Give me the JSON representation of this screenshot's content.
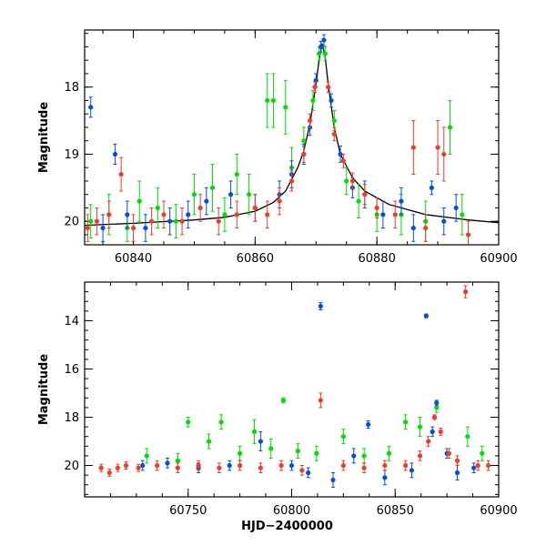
{
  "chart_data": [
    {
      "type": "scatter",
      "panel": "top",
      "xlabel": "",
      "ylabel": "Magnitude",
      "xlim": [
        60832,
        60900
      ],
      "ylim": [
        20.35,
        17.15
      ],
      "y_inverted": true,
      "x_ticks": [
        60840,
        60860,
        60880,
        60900
      ],
      "y_ticks": [
        18,
        19,
        20
      ],
      "tick_labels_x": [
        "60840",
        "60860",
        "60880",
        "60900"
      ],
      "tick_labels_y": [
        "18",
        "19",
        "20"
      ],
      "model_curve": {
        "color": "#000000",
        "x": [
          60832,
          60840,
          60850,
          60855,
          60860,
          60863,
          60865,
          60867,
          60868,
          60869,
          60870,
          60870.5,
          60871,
          60871.5,
          60872,
          60873,
          60874,
          60876,
          60878,
          60882,
          60888,
          60895,
          60900
        ],
        "y": [
          20.06,
          20.03,
          19.98,
          19.94,
          19.85,
          19.72,
          19.55,
          19.2,
          18.95,
          18.55,
          17.95,
          17.6,
          17.35,
          17.55,
          17.95,
          18.6,
          19.0,
          19.35,
          19.55,
          19.75,
          19.9,
          19.98,
          20.02
        ]
      },
      "series": [
        {
          "color": "#00dd00",
          "points": [
            {
              "x": 60833,
              "y": 20.0,
              "err": 0.25
            },
            {
              "x": 60836,
              "y": 19.9,
              "err": 0.3
            },
            {
              "x": 60839,
              "y": 20.1,
              "err": 0.2
            },
            {
              "x": 60841,
              "y": 19.7,
              "err": 0.3
            },
            {
              "x": 60844,
              "y": 19.8,
              "err": 0.3
            },
            {
              "x": 60847,
              "y": 20.0,
              "err": 0.25
            },
            {
              "x": 60850,
              "y": 19.6,
              "err": 0.3
            },
            {
              "x": 60853,
              "y": 19.5,
              "err": 0.35
            },
            {
              "x": 60855,
              "y": 19.9,
              "err": 0.25
            },
            {
              "x": 60857,
              "y": 19.3,
              "err": 0.3
            },
            {
              "x": 60859,
              "y": 19.6,
              "err": 0.3
            },
            {
              "x": 60862,
              "y": 18.2,
              "err": 0.4
            },
            {
              "x": 60863,
              "y": 18.2,
              "err": 0.4
            },
            {
              "x": 60865,
              "y": 18.3,
              "err": 0.4
            },
            {
              "x": 60866,
              "y": 19.2,
              "err": 0.3
            },
            {
              "x": 60868,
              "y": 18.8,
              "err": 0.2
            },
            {
              "x": 60869.5,
              "y": 18.2,
              "err": 0.15
            },
            {
              "x": 60870.5,
              "y": 17.5,
              "err": 0.1
            },
            {
              "x": 60871.5,
              "y": 17.5,
              "err": 0.1
            },
            {
              "x": 60873,
              "y": 18.5,
              "err": 0.15
            },
            {
              "x": 60875,
              "y": 19.4,
              "err": 0.2
            },
            {
              "x": 60877,
              "y": 19.7,
              "err": 0.25
            },
            {
              "x": 60880,
              "y": 19.9,
              "err": 0.25
            },
            {
              "x": 60884,
              "y": 19.9,
              "err": 0.3
            },
            {
              "x": 60888,
              "y": 20.0,
              "err": 0.3
            },
            {
              "x": 60892,
              "y": 18.6,
              "err": 0.4
            },
            {
              "x": 60894,
              "y": 19.9,
              "err": 0.3
            }
          ]
        },
        {
          "color": "#0050e0",
          "points": [
            {
              "x": 60833,
              "y": 18.3,
              "err": 0.15
            },
            {
              "x": 60835,
              "y": 20.1,
              "err": 0.2
            },
            {
              "x": 60837,
              "y": 19.0,
              "err": 0.15
            },
            {
              "x": 60839,
              "y": 19.9,
              "err": 0.2
            },
            {
              "x": 60842,
              "y": 20.1,
              "err": 0.2
            },
            {
              "x": 60846,
              "y": 20.0,
              "err": 0.2
            },
            {
              "x": 60849,
              "y": 19.9,
              "err": 0.2
            },
            {
              "x": 60852,
              "y": 19.7,
              "err": 0.2
            },
            {
              "x": 60856,
              "y": 19.6,
              "err": 0.2
            },
            {
              "x": 60860,
              "y": 19.8,
              "err": 0.2
            },
            {
              "x": 60864,
              "y": 19.6,
              "err": 0.2
            },
            {
              "x": 60866,
              "y": 19.3,
              "err": 0.2
            },
            {
              "x": 60868,
              "y": 19.0,
              "err": 0.15
            },
            {
              "x": 60869,
              "y": 18.6,
              "err": 0.12
            },
            {
              "x": 60870,
              "y": 17.9,
              "err": 0.1
            },
            {
              "x": 60870.8,
              "y": 17.4,
              "err": 0.08
            },
            {
              "x": 60871.3,
              "y": 17.3,
              "err": 0.08
            },
            {
              "x": 60872.5,
              "y": 18.2,
              "err": 0.1
            },
            {
              "x": 60874,
              "y": 19.0,
              "err": 0.12
            },
            {
              "x": 60876,
              "y": 19.5,
              "err": 0.15
            },
            {
              "x": 60878,
              "y": 19.6,
              "err": 0.2
            },
            {
              "x": 60881,
              "y": 19.9,
              "err": 0.2
            },
            {
              "x": 60884,
              "y": 19.7,
              "err": 0.2
            },
            {
              "x": 60886,
              "y": 20.1,
              "err": 0.2
            },
            {
              "x": 60889,
              "y": 19.5,
              "err": 0.1
            },
            {
              "x": 60891,
              "y": 20.0,
              "err": 0.2
            },
            {
              "x": 60893,
              "y": 19.8,
              "err": 0.2
            }
          ]
        },
        {
          "color": "#f03c28",
          "points": [
            {
              "x": 60832.5,
              "y": 20.1,
              "err": 0.2
            },
            {
              "x": 60834,
              "y": 20.0,
              "err": 0.2
            },
            {
              "x": 60836,
              "y": 19.9,
              "err": 0.2
            },
            {
              "x": 60838,
              "y": 19.3,
              "err": 0.25
            },
            {
              "x": 60840,
              "y": 20.1,
              "err": 0.2
            },
            {
              "x": 60843,
              "y": 20.0,
              "err": 0.2
            },
            {
              "x": 60845,
              "y": 19.9,
              "err": 0.2
            },
            {
              "x": 60848,
              "y": 20.0,
              "err": 0.2
            },
            {
              "x": 60851,
              "y": 19.8,
              "err": 0.2
            },
            {
              "x": 60854,
              "y": 20.0,
              "err": 0.2
            },
            {
              "x": 60857,
              "y": 19.9,
              "err": 0.2
            },
            {
              "x": 60860,
              "y": 19.8,
              "err": 0.2
            },
            {
              "x": 60862,
              "y": 19.9,
              "err": 0.2
            },
            {
              "x": 60864,
              "y": 19.7,
              "err": 0.2
            },
            {
              "x": 60866,
              "y": 19.4,
              "err": 0.15
            },
            {
              "x": 60868,
              "y": 19.0,
              "err": 0.12
            },
            {
              "x": 60869,
              "y": 18.5,
              "err": 0.1
            },
            {
              "x": 60869.8,
              "y": 18.0,
              "err": 0.08
            },
            {
              "x": 60872,
              "y": 18.0,
              "err": 0.08
            },
            {
              "x": 60873,
              "y": 18.7,
              "err": 0.1
            },
            {
              "x": 60874.5,
              "y": 19.1,
              "err": 0.1
            },
            {
              "x": 60876,
              "y": 19.4,
              "err": 0.12
            },
            {
              "x": 60878,
              "y": 19.6,
              "err": 0.15
            },
            {
              "x": 60880,
              "y": 19.8,
              "err": 0.15
            },
            {
              "x": 60883,
              "y": 19.9,
              "err": 0.2
            },
            {
              "x": 60886,
              "y": 18.9,
              "err": 0.4
            },
            {
              "x": 60888,
              "y": 20.1,
              "err": 0.2
            },
            {
              "x": 60890,
              "y": 18.9,
              "err": 0.4
            },
            {
              "x": 60891,
              "y": 19.0,
              "err": 0.4
            },
            {
              "x": 60895,
              "y": 20.2,
              "err": 0.2
            }
          ]
        }
      ]
    },
    {
      "type": "scatter",
      "panel": "bottom",
      "xlabel": "HJD−2400000",
      "ylabel": "Magnitude",
      "xlim": [
        60700,
        60900
      ],
      "ylim": [
        21.3,
        12.4
      ],
      "y_inverted": true,
      "x_ticks": [
        60750,
        60800,
        60850,
        60900
      ],
      "y_ticks": [
        14,
        16,
        18,
        20
      ],
      "tick_labels_x": [
        "60750",
        "60800",
        "60850",
        "60900"
      ],
      "tick_labels_y": [
        "14",
        "16",
        "18",
        "20"
      ],
      "series": [
        {
          "color": "#00dd00",
          "points": [
            {
              "x": 60730,
              "y": 19.6,
              "err": 0.3
            },
            {
              "x": 60745,
              "y": 19.8,
              "err": 0.3
            },
            {
              "x": 60750,
              "y": 18.2,
              "err": 0.2
            },
            {
              "x": 60760,
              "y": 19.0,
              "err": 0.3
            },
            {
              "x": 60766,
              "y": 18.2,
              "err": 0.3
            },
            {
              "x": 60775,
              "y": 19.5,
              "err": 0.3
            },
            {
              "x": 60782,
              "y": 18.6,
              "err": 0.5
            },
            {
              "x": 60790,
              "y": 19.3,
              "err": 0.4
            },
            {
              "x": 60796,
              "y": 17.3,
              "err": 0.1
            },
            {
              "x": 60803,
              "y": 19.4,
              "err": 0.3
            },
            {
              "x": 60812,
              "y": 19.5,
              "err": 0.3
            },
            {
              "x": 60825,
              "y": 18.8,
              "err": 0.3
            },
            {
              "x": 60835,
              "y": 19.6,
              "err": 0.3
            },
            {
              "x": 60847,
              "y": 19.5,
              "err": 0.3
            },
            {
              "x": 60855,
              "y": 18.2,
              "err": 0.3
            },
            {
              "x": 60862,
              "y": 18.4,
              "err": 0.4
            },
            {
              "x": 60870,
              "y": 17.6,
              "err": 0.2
            },
            {
              "x": 60885,
              "y": 18.8,
              "err": 0.4
            },
            {
              "x": 60892,
              "y": 19.5,
              "err": 0.3
            }
          ]
        },
        {
          "color": "#0050e0",
          "points": [
            {
              "x": 60728,
              "y": 20.0,
              "err": 0.2
            },
            {
              "x": 60740,
              "y": 19.9,
              "err": 0.2
            },
            {
              "x": 60755,
              "y": 20.1,
              "err": 0.2
            },
            {
              "x": 60770,
              "y": 20.0,
              "err": 0.2
            },
            {
              "x": 60785,
              "y": 19.0,
              "err": 0.4
            },
            {
              "x": 60800,
              "y": 20.0,
              "err": 0.2
            },
            {
              "x": 60808,
              "y": 20.3,
              "err": 0.2
            },
            {
              "x": 60814,
              "y": 13.4,
              "err": 0.15
            },
            {
              "x": 60820,
              "y": 20.6,
              "err": 0.3
            },
            {
              "x": 60830,
              "y": 19.6,
              "err": 0.3
            },
            {
              "x": 60837,
              "y": 18.3,
              "err": 0.15
            },
            {
              "x": 60845,
              "y": 20.5,
              "err": 0.3
            },
            {
              "x": 60858,
              "y": 20.2,
              "err": 0.3
            },
            {
              "x": 60865,
              "y": 13.8,
              "err": 0.08
            },
            {
              "x": 60868,
              "y": 18.6,
              "err": 0.2
            },
            {
              "x": 60870,
              "y": 17.4,
              "err": 0.1
            },
            {
              "x": 60875,
              "y": 19.5,
              "err": 0.2
            },
            {
              "x": 60880,
              "y": 20.3,
              "err": 0.3
            },
            {
              "x": 60888,
              "y": 20.1,
              "err": 0.2
            }
          ]
        },
        {
          "color": "#f03c28",
          "points": [
            {
              "x": 60708,
              "y": 20.1,
              "err": 0.15
            },
            {
              "x": 60712,
              "y": 20.3,
              "err": 0.15
            },
            {
              "x": 60716,
              "y": 20.1,
              "err": 0.15
            },
            {
              "x": 60720,
              "y": 20.0,
              "err": 0.15
            },
            {
              "x": 60726,
              "y": 20.1,
              "err": 0.15
            },
            {
              "x": 60735,
              "y": 20.0,
              "err": 0.2
            },
            {
              "x": 60745,
              "y": 20.1,
              "err": 0.2
            },
            {
              "x": 60755,
              "y": 20.0,
              "err": 0.2
            },
            {
              "x": 60765,
              "y": 20.1,
              "err": 0.2
            },
            {
              "x": 60775,
              "y": 20.0,
              "err": 0.2
            },
            {
              "x": 60785,
              "y": 20.1,
              "err": 0.2
            },
            {
              "x": 60795,
              "y": 20.0,
              "err": 0.2
            },
            {
              "x": 60805,
              "y": 20.2,
              "err": 0.2
            },
            {
              "x": 60814,
              "y": 17.3,
              "err": 0.3
            },
            {
              "x": 60825,
              "y": 20.0,
              "err": 0.2
            },
            {
              "x": 60835,
              "y": 20.1,
              "err": 0.2
            },
            {
              "x": 60845,
              "y": 20.0,
              "err": 0.2
            },
            {
              "x": 60855,
              "y": 20.0,
              "err": 0.2
            },
            {
              "x": 60862,
              "y": 19.6,
              "err": 0.2
            },
            {
              "x": 60866,
              "y": 19.0,
              "err": 0.2
            },
            {
              "x": 60869,
              "y": 18.0,
              "err": 0.1
            },
            {
              "x": 60872,
              "y": 18.6,
              "err": 0.15
            },
            {
              "x": 60876,
              "y": 19.5,
              "err": 0.2
            },
            {
              "x": 60880,
              "y": 19.8,
              "err": 0.2
            },
            {
              "x": 60884,
              "y": 12.8,
              "err": 0.25
            },
            {
              "x": 60890,
              "y": 20.0,
              "err": 0.2
            },
            {
              "x": 60895,
              "y": 20.0,
              "err": 0.2
            }
          ]
        }
      ]
    }
  ]
}
